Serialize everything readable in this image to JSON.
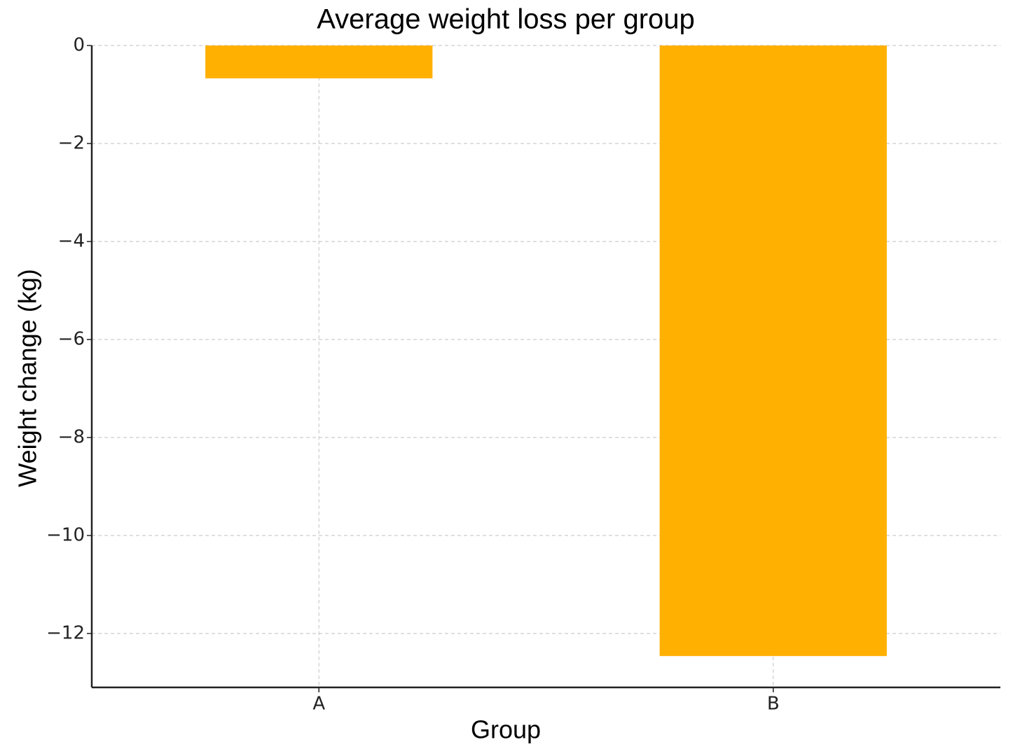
{
  "chart_data": {
    "type": "bar",
    "title": "Average weight loss per group",
    "x_label": "Group",
    "y_label": "Weight change (kg)",
    "categories": [
      "A",
      "B"
    ],
    "values": [
      -0.67,
      -12.46
    ],
    "color": "#ffb000",
    "ylim": [
      -13.1,
      0
    ],
    "yticks": [
      {
        "value": -12,
        "label": "−12"
      },
      {
        "value": -10,
        "label": "−10"
      },
      {
        "value": -8,
        "label": "−8"
      },
      {
        "value": -6,
        "label": "−6"
      },
      {
        "value": -4,
        "label": "−4"
      },
      {
        "value": -2,
        "label": "−2"
      },
      0
    ],
    "grid": true
  }
}
